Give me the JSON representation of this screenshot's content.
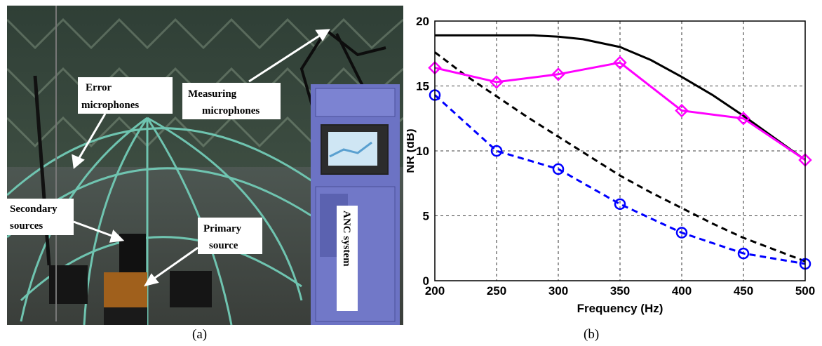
{
  "photo": {
    "labels": {
      "error_mics_1": "Error",
      "error_mics_2": "microphones",
      "measuring_mics_1": "Measuring",
      "measuring_mics_2": "microphones",
      "secondary_1": "Secondary",
      "secondary_2": "sources",
      "primary_1": "Primary",
      "primary_2": "source",
      "anc": "ANC system"
    }
  },
  "captions": {
    "a": "(a)",
    "b": "(b)"
  },
  "colors": {
    "black": "#000000",
    "magenta": "#ff00ff",
    "blue": "#0000ff"
  },
  "chart_data": {
    "type": "line",
    "xlabel": "Frequency (Hz)",
    "ylabel": "NR (dB)",
    "xlim": [
      200,
      500
    ],
    "ylim": [
      0,
      20
    ],
    "xticks": [
      200,
      250,
      300,
      350,
      400,
      450,
      500
    ],
    "yticks": [
      0,
      5,
      10,
      15,
      20
    ],
    "grid": true,
    "series": [
      {
        "style": "solid",
        "color": "#000000",
        "marker": "none",
        "x": [
          200,
          250,
          280,
          300,
          320,
          350,
          375,
          400,
          425,
          450,
          475,
          500
        ],
        "y": [
          18.9,
          18.9,
          18.9,
          18.8,
          18.6,
          18.0,
          17.0,
          15.7,
          14.3,
          12.7,
          11.0,
          9.3
        ]
      },
      {
        "style": "dashed",
        "color": "#000000",
        "marker": "none",
        "x": [
          200,
          225,
          250,
          275,
          300,
          325,
          350,
          375,
          400,
          425,
          450,
          475,
          500
        ],
        "y": [
          17.6,
          15.8,
          14.2,
          12.6,
          11.1,
          9.6,
          8.1,
          6.8,
          5.6,
          4.4,
          3.3,
          2.4,
          1.5
        ]
      },
      {
        "style": "solid",
        "color": "#ff00ff",
        "marker": "diamond",
        "x": [
          200,
          250,
          300,
          350,
          400,
          450,
          500
        ],
        "y": [
          16.4,
          15.3,
          15.9,
          16.8,
          13.1,
          12.5,
          9.3
        ]
      },
      {
        "style": "dashed",
        "color": "#0000ff",
        "marker": "circle",
        "x": [
          200,
          250,
          300,
          350,
          400,
          450,
          500
        ],
        "y": [
          14.3,
          10.0,
          8.6,
          5.9,
          3.7,
          2.1,
          1.3
        ]
      }
    ]
  }
}
